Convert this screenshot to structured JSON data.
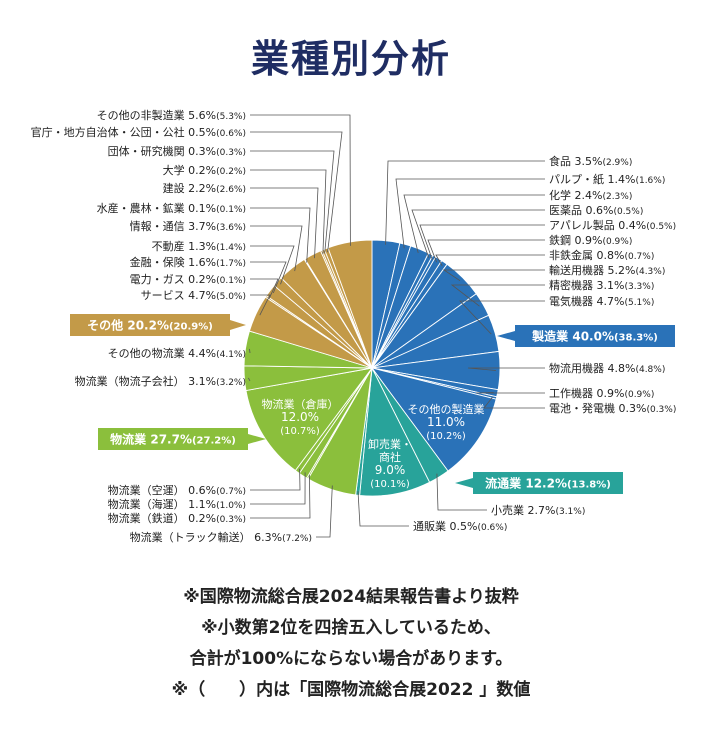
{
  "chart_data": {
    "type": "pie",
    "title": "業種別分析",
    "start_angle_deg": 0,
    "direction": "clockwise",
    "slices": [
      {
        "label": "食品",
        "value": 3.5,
        "prev": "(2.9%)",
        "group": "mfg"
      },
      {
        "label": "パルプ・紙",
        "value": 1.4,
        "prev": "(1.6%)",
        "group": "mfg"
      },
      {
        "label": "化学",
        "value": 2.4,
        "prev": "(2.3%)",
        "group": "mfg"
      },
      {
        "label": "医薬品",
        "value": 0.6,
        "prev": "(0.5%)",
        "group": "mfg"
      },
      {
        "label": "アパレル製品",
        "value": 0.4,
        "prev": "(0.5%)",
        "group": "mfg"
      },
      {
        "label": "鉄鋼",
        "value": 0.9,
        "prev": "(0.9%)",
        "group": "mfg"
      },
      {
        "label": "非鉄金属",
        "value": 0.8,
        "prev": "(0.7%)",
        "group": "mfg"
      },
      {
        "label": "輸送用機器",
        "value": 5.2,
        "prev": "(4.3%)",
        "group": "mfg"
      },
      {
        "label": "精密機器",
        "value": 3.1,
        "prev": "(3.3%)",
        "group": "mfg"
      },
      {
        "label": "電気機器",
        "value": 4.7,
        "prev": "(5.1%)",
        "group": "mfg"
      },
      {
        "label": "物流用機器",
        "value": 4.8,
        "prev": "(4.8%)",
        "group": "mfg"
      },
      {
        "label": "工作機器",
        "value": 0.9,
        "prev": "(0.9%)",
        "group": "mfg"
      },
      {
        "label": "電池・発電機",
        "value": 0.3,
        "prev": "(0.3%)",
        "group": "mfg"
      },
      {
        "label": "その他の製造業",
        "value": 11.0,
        "prev": "(10.2%)",
        "group": "mfg"
      },
      {
        "label": "小売業",
        "value": 2.7,
        "prev": "(3.1%)",
        "group": "dist"
      },
      {
        "label": "卸売業・商社",
        "value": 9.0,
        "prev": "(10.1%)",
        "group": "dist"
      },
      {
        "label": "通販業",
        "value": 0.5,
        "prev": "(0.6%)",
        "group": "dist"
      },
      {
        "label": "物流業（トラック輸送）",
        "value": 6.3,
        "prev": "(7.2%)",
        "group": "log"
      },
      {
        "label": "物流業（鉄道）",
        "value": 0.2,
        "prev": "(0.3%)",
        "group": "log"
      },
      {
        "label": "物流業（海運）",
        "value": 1.1,
        "prev": "(1.0%)",
        "group": "log"
      },
      {
        "label": "物流業（空運）",
        "value": 0.6,
        "prev": "(0.7%)",
        "group": "log"
      },
      {
        "label": "物流業（倉庫）",
        "value": 12.0,
        "prev": "(10.7%)",
        "group": "log"
      },
      {
        "label": "物流業（物流子会社）",
        "value": 3.1,
        "prev": "(3.2%)",
        "group": "log"
      },
      {
        "label": "その他の物流業",
        "value": 4.4,
        "prev": "(4.1%)",
        "group": "log"
      },
      {
        "label": "サービス",
        "value": 4.7,
        "prev": "(5.0%)",
        "group": "other"
      },
      {
        "label": "電力・ガス",
        "value": 0.2,
        "prev": "(0.1%)",
        "group": "other"
      },
      {
        "label": "金融・保険",
        "value": 1.6,
        "prev": "(1.7%)",
        "group": "other"
      },
      {
        "label": "不動産",
        "value": 1.3,
        "prev": "(1.4%)",
        "group": "other"
      },
      {
        "label": "情報・通信",
        "value": 3.7,
        "prev": "(3.6%)",
        "group": "other"
      },
      {
        "label": "水産・農林・鉱業",
        "value": 0.1,
        "prev": "(0.1%)",
        "group": "other"
      },
      {
        "label": "建設",
        "value": 2.2,
        "prev": "(2.6%)",
        "group": "other"
      },
      {
        "label": "大学",
        "value": 0.2,
        "prev": "(0.2%)",
        "group": "other"
      },
      {
        "label": "団体・研究機関",
        "value": 0.3,
        "prev": "(0.3%)",
        "group": "other"
      },
      {
        "label": "官庁・地方自治体・公団・公社",
        "value": 0.5,
        "prev": "(0.6%)",
        "group": "other"
      },
      {
        "label": "その他の非製造業",
        "value": 5.6,
        "prev": "(5.3%)",
        "group": "other"
      }
    ],
    "groups": [
      {
        "id": "mfg",
        "label": "製造業",
        "value": "40.0%",
        "prev": "(38.3%)",
        "color": "#2a72b8"
      },
      {
        "id": "dist",
        "label": "流通業",
        "value": "12.2%",
        "prev": "(13.8%)",
        "color": "#28a39a"
      },
      {
        "id": "log",
        "label": "物流業",
        "value": "27.7%",
        "prev": "(27.2%)",
        "color": "#8bbf3c"
      },
      {
        "id": "other",
        "label": "その他",
        "value": "20.2%",
        "prev": "(20.9%)",
        "color": "#c39a48"
      }
    ]
  },
  "notes": [
    "※国際物流総合展2024結果報告書より抜粋",
    "※小数第2位を四捨五入しているため、",
    "合計が100%にならない場合があります。",
    "※（　　）内は「国際物流総合展2022 」数値"
  ]
}
